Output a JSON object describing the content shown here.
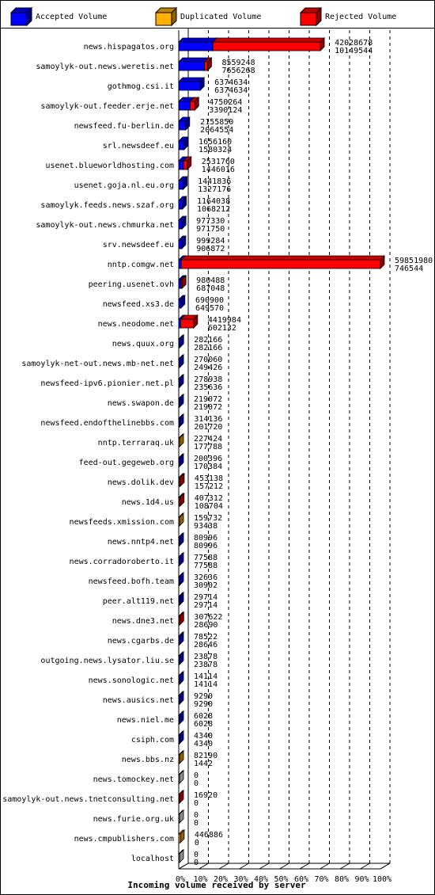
{
  "legend": [
    {
      "label": "Accepted Volume",
      "color": "#0000ff"
    },
    {
      "label": "Duplicated Volume",
      "color": "#ffb000"
    },
    {
      "label": "Rejected Volume",
      "color": "#ff0000"
    }
  ],
  "chart_data": {
    "type": "bar",
    "orientation": "horizontal",
    "xlabel": "Incoming volume received by server",
    "x_ticks": [
      "0%",
      "10%",
      "20%",
      "30%",
      "40%",
      "50%",
      "60%",
      "70%",
      "80%",
      "90%",
      "100%"
    ],
    "xlim": [
      0,
      59851980
    ],
    "series": [
      {
        "name": "Accepted Volume",
        "color": "#0000ff"
      },
      {
        "name": "Duplicated Volume",
        "color": "#ffb000"
      },
      {
        "name": "Rejected Volume",
        "color": "#ff0000"
      }
    ],
    "categories": [
      {
        "name": "news.hispagatos.org",
        "total": 42028678,
        "accepted": 10149544,
        "label_top": "42028678",
        "label_bottom": "10149544"
      },
      {
        "name": "samoylyk-out.news.weretis.net",
        "total": 8559248,
        "accepted": 7656268,
        "label_top": "8559248",
        "label_bottom": "7656268"
      },
      {
        "name": "gothmog.csi.it",
        "total": 6374634,
        "accepted": 6374634,
        "label_top": "6374634",
        "label_bottom": "6374634"
      },
      {
        "name": "samoylyk-out.feeder.erje.net",
        "total": 4750264,
        "accepted": 3390124,
        "label_top": "4750264",
        "label_bottom": "3390124"
      },
      {
        "name": "newsfeed.fu-berlin.de",
        "total": 2155850,
        "accepted": 2064554,
        "label_top": "2155850",
        "label_bottom": "2064554"
      },
      {
        "name": "srl.newsdeef.eu",
        "total": 1656160,
        "accepted": 1580324,
        "label_top": "1656160",
        "label_bottom": "1580324"
      },
      {
        "name": "usenet.blueworldhosting.com",
        "total": 2531760,
        "accepted": 1446016,
        "label_top": "2531760",
        "label_bottom": "1446016"
      },
      {
        "name": "usenet.goja.nl.eu.org",
        "total": 1441836,
        "accepted": 1327176,
        "label_top": "1441836",
        "label_bottom": "1327176"
      },
      {
        "name": "samoylyk.feeds.news.szaf.org",
        "total": 1164038,
        "accepted": 1068212,
        "label_top": "1164038",
        "label_bottom": "1068212"
      },
      {
        "name": "samoylyk-out.news.chmurka.net",
        "total": 977330,
        "accepted": 971750,
        "label_top": "977330",
        "label_bottom": "971750"
      },
      {
        "name": "srv.newsdeef.eu",
        "total": 999284,
        "accepted": 906872,
        "label_top": "999284",
        "label_bottom": "906872"
      },
      {
        "name": "nntp.comgw.net",
        "total": 59851980,
        "accepted": 746544,
        "label_top": "59851980",
        "label_bottom": "746544"
      },
      {
        "name": "peering.usenet.ovh",
        "total": 980488,
        "accepted": 687048,
        "label_top": "980488",
        "label_bottom": "687048"
      },
      {
        "name": "newsfeed.xs3.de",
        "total": 690900,
        "accepted": 649570,
        "label_top": "690900",
        "label_bottom": "649570"
      },
      {
        "name": "news.neodome.net",
        "total": 4419984,
        "accepted": 602132,
        "label_top": "4419984",
        "label_bottom": "602132"
      },
      {
        "name": "news.quux.org",
        "total": 282166,
        "accepted": 282166,
        "label_top": "282166",
        "label_bottom": "282166"
      },
      {
        "name": "samoylyk-net-out.news.mb-net.net",
        "total": 270060,
        "accepted": 249426,
        "label_top": "270060",
        "label_bottom": "249426"
      },
      {
        "name": "newsfeed-ipv6.pionier.net.pl",
        "total": 278938,
        "accepted": 235636,
        "label_top": "278938",
        "label_bottom": "235636"
      },
      {
        "name": "news.swapon.de",
        "total": 219072,
        "accepted": 219072,
        "label_top": "219072",
        "label_bottom": "219072"
      },
      {
        "name": "newsfeed.endofthelinebbs.com",
        "total": 314136,
        "accepted": 201720,
        "label_top": "314136",
        "label_bottom": "201720"
      },
      {
        "name": "nntp.terraraq.uk",
        "total": 227424,
        "accepted": 177788,
        "label_top": "227424",
        "label_bottom": "177788"
      },
      {
        "name": "feed-out.gegeweb.org",
        "total": 200396,
        "accepted": 170384,
        "label_top": "200396",
        "label_bottom": "170384"
      },
      {
        "name": "news.dolik.dev",
        "total": 453138,
        "accepted": 157212,
        "label_top": "453138",
        "label_bottom": "157212"
      },
      {
        "name": "news.1d4.us",
        "total": 407312,
        "accepted": 108704,
        "label_top": "407312",
        "label_bottom": "108704"
      },
      {
        "name": "newsfeeds.xmission.com",
        "total": 159732,
        "accepted": 93438,
        "label_top": "159732",
        "label_bottom": "93438"
      },
      {
        "name": "news.nntp4.net",
        "total": 80996,
        "accepted": 80996,
        "label_top": "80996",
        "label_bottom": "80996"
      },
      {
        "name": "news.corradoroberto.it",
        "total": 77588,
        "accepted": 77588,
        "label_top": "77588",
        "label_bottom": "77588"
      },
      {
        "name": "newsfeed.bofh.team",
        "total": 32636,
        "accepted": 30902,
        "label_top": "32636",
        "label_bottom": "30902"
      },
      {
        "name": "peer.alt119.net",
        "total": 29714,
        "accepted": 29714,
        "label_top": "29714",
        "label_bottom": "29714"
      },
      {
        "name": "news.dne3.net",
        "total": 307622,
        "accepted": 28690,
        "label_top": "307622",
        "label_bottom": "28690"
      },
      {
        "name": "news.cgarbs.de",
        "total": 78522,
        "accepted": 28646,
        "label_top": "78522",
        "label_bottom": "28646"
      },
      {
        "name": "outgoing.news.lysator.liu.se",
        "total": 23878,
        "accepted": 23878,
        "label_top": "23878",
        "label_bottom": "23878"
      },
      {
        "name": "news.sonologic.net",
        "total": 14114,
        "accepted": 14114,
        "label_top": "14114",
        "label_bottom": "14114"
      },
      {
        "name": "news.ausics.net",
        "total": 9290,
        "accepted": 9290,
        "label_top": "9290",
        "label_bottom": "9290"
      },
      {
        "name": "news.niel.me",
        "total": 6028,
        "accepted": 6028,
        "label_top": "6028",
        "label_bottom": "6028"
      },
      {
        "name": "csiph.com",
        "total": 4340,
        "accepted": 4340,
        "label_top": "4340",
        "label_bottom": "4340"
      },
      {
        "name": "news.bbs.nz",
        "total": 82190,
        "accepted": 1442,
        "label_top": "82190",
        "label_bottom": "1442"
      },
      {
        "name": "news.tomockey.net",
        "total": 0,
        "accepted": 0,
        "label_top": "0",
        "label_bottom": "0"
      },
      {
        "name": "samoylyk-out.news.tnetconsulting.net",
        "total": 16920,
        "accepted": 0,
        "label_top": "16920",
        "label_bottom": "0"
      },
      {
        "name": "news.furie.org.uk",
        "total": 0,
        "accepted": 0,
        "label_top": "0",
        "label_bottom": "0"
      },
      {
        "name": "news.cmpublishers.com",
        "total": 446886,
        "accepted": 0,
        "label_top": "446886",
        "label_bottom": "0"
      },
      {
        "name": "localhost",
        "total": 0,
        "accepted": 0,
        "label_top": "0",
        "label_bottom": "0"
      }
    ]
  }
}
